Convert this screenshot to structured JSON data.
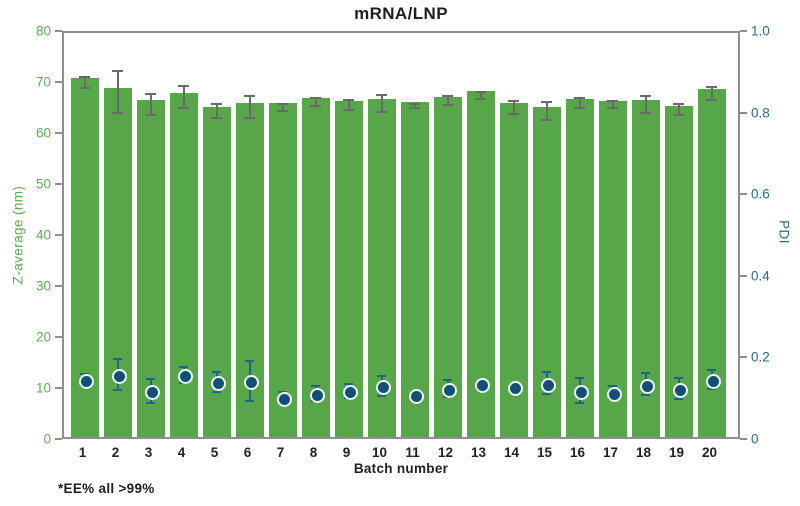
{
  "title": "mRNA/LNP",
  "footnote": "*EE% all >99%",
  "axes": {
    "left_label": "Z-average (nm)",
    "right_label": "PDI",
    "x_label": "Batch number"
  },
  "colors": {
    "bar_green": "#57a74a",
    "left_axis_text": "#5bae52",
    "right_axis_text": "#266c91",
    "bar_error": "#6a6a6a",
    "point_fill": "#124f78",
    "point_ring": "#f2f9f1",
    "point_error": "#1d648c",
    "frame_gray": "#8e8e8e",
    "title_text": "#1f1f1f",
    "x_text": "#222222"
  },
  "chart_data": {
    "type": "bar",
    "title": "mRNA/LNP",
    "xlabel": "Batch number",
    "ylabel_left": "Z-average (nm)",
    "ylabel_right": "PDI",
    "categories": [
      "1",
      "2",
      "3",
      "4",
      "5",
      "6",
      "7",
      "8",
      "9",
      "10",
      "11",
      "12",
      "13",
      "14",
      "15",
      "16",
      "17",
      "18",
      "19",
      "20"
    ],
    "series": [
      {
        "name": "Z-average (nm)",
        "type": "bar",
        "axis": "left",
        "values": [
          70.3,
          68.5,
          66.0,
          67.5,
          64.7,
          65.5,
          65.4,
          66.4,
          65.9,
          66.2,
          65.7,
          66.7,
          67.8,
          65.4,
          64.7,
          66.2,
          65.9,
          66.0,
          65.0,
          68.2
        ],
        "errors": [
          1.1,
          4.1,
          2.0,
          2.2,
          1.3,
          2.1,
          0.7,
          0.8,
          0.9,
          1.6,
          0.4,
          0.9,
          0.7,
          1.2,
          1.7,
          1.0,
          0.7,
          1.6,
          1.0,
          1.3
        ]
      },
      {
        "name": "PDI",
        "type": "scatter",
        "axis": "right",
        "values": [
          0.15,
          0.163,
          0.123,
          0.162,
          0.145,
          0.148,
          0.107,
          0.117,
          0.123,
          0.135,
          0.113,
          0.129,
          0.141,
          0.133,
          0.141,
          0.123,
          0.118,
          0.139,
          0.129,
          0.15
        ],
        "errors": [
          0.013,
          0.039,
          0.029,
          0.02,
          0.025,
          0.049,
          0.012,
          0.018,
          0.017,
          0.025,
          0,
          0.02,
          0,
          0,
          0.027,
          0.031,
          0.016,
          0.027,
          0.025,
          0.023
        ]
      }
    ],
    "ylim_left": [
      0,
      80
    ],
    "ylim_right": [
      0,
      1.0
    ],
    "y_left_ticks": [
      "0",
      "10",
      "20",
      "30",
      "40",
      "50",
      "60",
      "70",
      "80"
    ],
    "y_right_ticks": [
      "0",
      "0.2",
      "0.4",
      "0.6",
      "0.8",
      "1.0"
    ],
    "grid": false,
    "legend": "none",
    "footnote": "*EE% all >99%"
  }
}
